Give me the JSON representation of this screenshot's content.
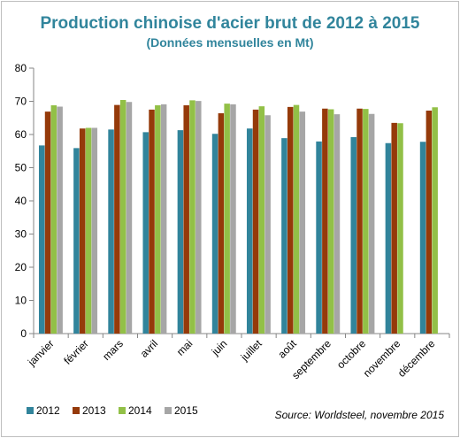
{
  "title": "Production chinoise d'acier brut  de 2012 à 2015",
  "subtitle": "(Données mensuelles en Mt)",
  "source": "Source:  Worldsteel, novembre  2015",
  "chart_data": {
    "type": "bar",
    "title": "Production chinoise d'acier brut  de 2012 à 2015",
    "subtitle": "(Données mensuelles en Mt)",
    "ylim": [
      0,
      80
    ],
    "yticks": [
      0,
      10,
      20,
      30,
      40,
      50,
      60,
      70,
      80
    ],
    "grid": false,
    "legend_position": "bottom",
    "categories": [
      "janvier",
      "février",
      "mars",
      "avril",
      "mai",
      "juin",
      "juillet",
      "août",
      "septembre",
      "octobre",
      "novembre",
      "décembre"
    ],
    "series": [
      {
        "name": "2012",
        "color": "#31849b",
        "values": [
          56.7,
          55.9,
          61.5,
          60.7,
          61.3,
          60.2,
          61.8,
          58.9,
          57.9,
          59.2,
          57.4,
          57.8
        ]
      },
      {
        "name": "2013",
        "color": "#953a0a",
        "values": [
          66.9,
          61.8,
          68.9,
          67.5,
          68.8,
          66.4,
          67.5,
          68.3,
          67.8,
          67.8,
          63.5,
          67.2
        ]
      },
      {
        "name": "2014",
        "color": "#92c047",
        "values": [
          68.8,
          62.0,
          70.4,
          68.8,
          70.3,
          69.3,
          68.5,
          68.9,
          67.6,
          67.7,
          63.4,
          68.2
        ]
      },
      {
        "name": "2015",
        "color": "#a6a6a6",
        "values": [
          68.4,
          62.0,
          69.8,
          69.1,
          70.1,
          69.1,
          65.8,
          66.9,
          66.1,
          66.2,
          null,
          null
        ]
      }
    ]
  }
}
